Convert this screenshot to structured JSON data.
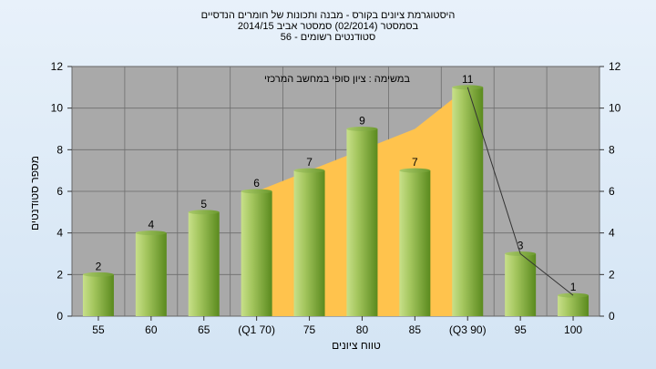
{
  "titles": {
    "line1": "היסטוגרמת ציונים בקורס - מבנה ותכונות של חומרים הנדסיים",
    "line2": "בסמסטר  (02/2014)  סמסטר אביב 2014/15",
    "line3": "סטודנטים רשומים - 56",
    "line4": ""
  },
  "chart_data": {
    "type": "bar",
    "annotation": "במשימה : ציון סופי במחשב המרכזי",
    "xlabel": "טווח ציונים",
    "ylabel": "מספר סטודנטים",
    "ylim": [
      0,
      12
    ],
    "yticks": [
      0,
      2,
      4,
      6,
      8,
      10,
      12
    ],
    "categories": [
      "55",
      "60",
      "65",
      "(Q1 70)",
      "75",
      "80",
      "85",
      "(Q3 90)",
      "95",
      "100"
    ],
    "values": [
      2,
      4,
      5,
      6,
      7,
      9,
      7,
      11,
      3,
      1
    ],
    "interquartile_area": {
      "from_index": 3,
      "to_index": 7,
      "values": [
        6,
        7,
        8,
        9,
        11
      ]
    },
    "grid": true,
    "colors": {
      "plot_background": "#a9a9a9",
      "bar_light": "#c8e08a",
      "bar_dark": "#5a8a1e",
      "area_fill": "#ffc34d",
      "grid": "#6e6e6e"
    }
  }
}
